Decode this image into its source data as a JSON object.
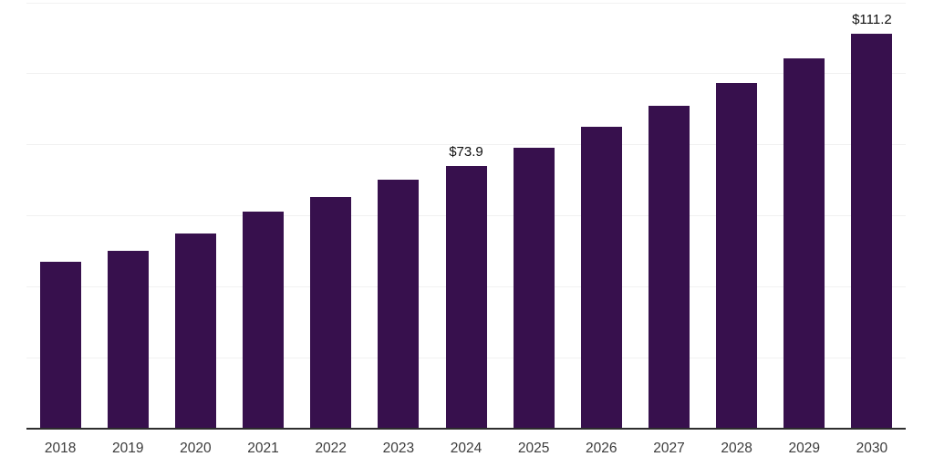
{
  "chart_data": {
    "type": "bar",
    "title": "",
    "xlabel": "",
    "ylabel": "",
    "categories": [
      "2018",
      "2019",
      "2020",
      "2021",
      "2022",
      "2023",
      "2024",
      "2025",
      "2026",
      "2027",
      "2028",
      "2029",
      "2030"
    ],
    "values": [
      47.0,
      50.0,
      54.9,
      61.1,
      65.2,
      70.1,
      73.9,
      79.1,
      85.0,
      90.9,
      97.3,
      104.2,
      111.2
    ],
    "point_labels": {
      "2024": "$73.9",
      "2030": "$111.2"
    },
    "ylim": [
      0,
      120
    ],
    "gridline_step": 20,
    "grid": true,
    "legend": "none",
    "bar_color": "#37104d",
    "grid_color": "#f1f1f1",
    "axis_color": "#2e2e2e",
    "point_label_color": "#0f0f0f",
    "tick_label_color": "#3b3b3b"
  }
}
